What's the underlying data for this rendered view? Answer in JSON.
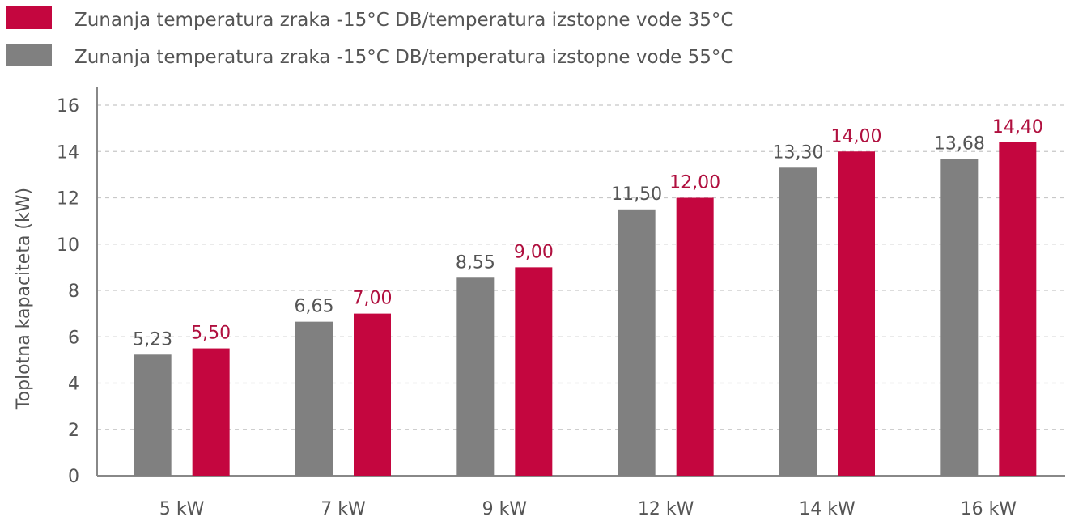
{
  "chart_data": {
    "type": "bar",
    "title": "",
    "xlabel": "",
    "ylabel": "Toplotna kapaciteta (kW)",
    "ylim": [
      0,
      16
    ],
    "y_ticks": [
      0,
      2,
      4,
      6,
      8,
      10,
      12,
      14,
      16
    ],
    "grid": "horizontal dashed",
    "legend_position": "top-left",
    "categories": [
      "5 kW",
      "7 kW",
      "9 kW",
      "12 kW",
      "14 kW",
      "16 kW"
    ],
    "series": [
      {
        "name": "Zunanja temperatura zraka -15°C DB/temperatura izstopne vode 55°C",
        "color": "#808080",
        "label_color": "#555555",
        "values": [
          5.23,
          6.65,
          8.55,
          11.5,
          13.3,
          13.68
        ],
        "labels": [
          "5,23",
          "6,65",
          "8,55",
          "11,50",
          "13,30",
          "13,68"
        ]
      },
      {
        "name": "Zunanja temperatura zraka -15°C DB/temperatura izstopne vode 35°C",
        "color": "#C4063F",
        "label_color": "#B0103F",
        "values": [
          5.5,
          7.0,
          9.0,
          12.0,
          14.0,
          14.4
        ],
        "labels": [
          "5,50",
          "7,00",
          "9,00",
          "12,00",
          "14,00",
          "14,40"
        ]
      }
    ],
    "legend_order": [
      1,
      0
    ]
  }
}
